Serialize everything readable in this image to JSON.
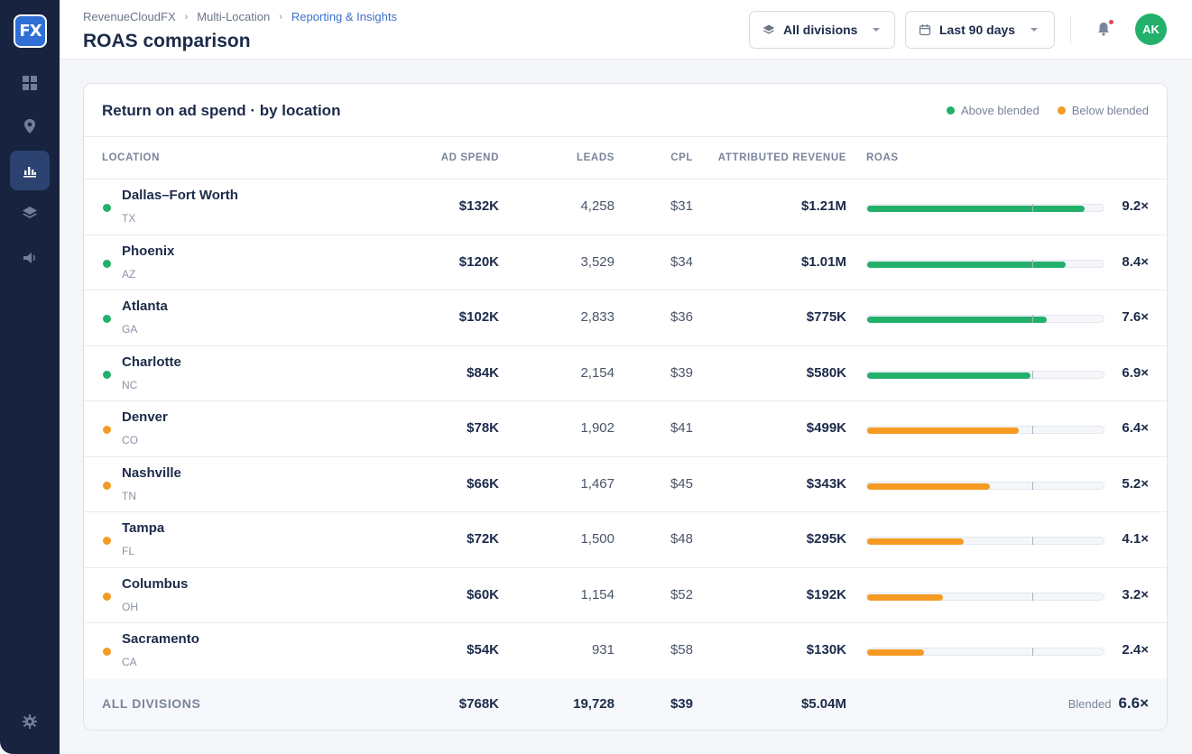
{
  "app": {
    "logo_text": "FX"
  },
  "sidebar": {
    "items": [
      {
        "name": "dashboard",
        "icon": "grid-icon"
      },
      {
        "name": "locations",
        "icon": "map-pin-icon"
      },
      {
        "name": "reporting",
        "icon": "bar-chart-icon",
        "active": true
      },
      {
        "name": "layers",
        "icon": "layers-icon"
      },
      {
        "name": "campaigns",
        "icon": "megaphone-icon"
      },
      {
        "name": "settings",
        "icon": "gear-icon"
      }
    ]
  },
  "header": {
    "breadcrumb": [
      "RevenueCloudFX",
      "Multi-Location",
      "Reporting & Insights"
    ],
    "title": "ROAS comparison",
    "division_filter": "All divisions",
    "date_filter": "Last 90 days",
    "avatar_initials": "AK"
  },
  "card": {
    "title": "Return on ad spend · by location",
    "legend": {
      "above": "Above blended",
      "below": "Below blended"
    },
    "columns": {
      "location": "LOCATION",
      "ad_spend": "AD SPEND",
      "leads": "LEADS",
      "cpl": "CPL",
      "revenue": "ATTRIBUTED REVENUE",
      "roas": "ROAS"
    },
    "rows": [
      {
        "name": "Dallas–Fort Worth",
        "state": "TX",
        "ad_spend": "$132K",
        "leads": "4,258",
        "cpl": "$31",
        "revenue": "$1.21M",
        "roas": 9.2,
        "roas_label": "9.2×",
        "status": "above"
      },
      {
        "name": "Phoenix",
        "state": "AZ",
        "ad_spend": "$120K",
        "leads": "3,529",
        "cpl": "$34",
        "revenue": "$1.01M",
        "roas": 8.4,
        "roas_label": "8.4×",
        "status": "above"
      },
      {
        "name": "Atlanta",
        "state": "GA",
        "ad_spend": "$102K",
        "leads": "2,833",
        "cpl": "$36",
        "revenue": "$775K",
        "roas": 7.6,
        "roas_label": "7.6×",
        "status": "above"
      },
      {
        "name": "Charlotte",
        "state": "NC",
        "ad_spend": "$84K",
        "leads": "2,154",
        "cpl": "$39",
        "revenue": "$580K",
        "roas": 6.9,
        "roas_label": "6.9×",
        "status": "above"
      },
      {
        "name": "Denver",
        "state": "CO",
        "ad_spend": "$78K",
        "leads": "1,902",
        "cpl": "$41",
        "revenue": "$499K",
        "roas": 6.4,
        "roas_label": "6.4×",
        "status": "below"
      },
      {
        "name": "Nashville",
        "state": "TN",
        "ad_spend": "$66K",
        "leads": "1,467",
        "cpl": "$45",
        "revenue": "$343K",
        "roas": 5.2,
        "roas_label": "5.2×",
        "status": "below"
      },
      {
        "name": "Tampa",
        "state": "FL",
        "ad_spend": "$72K",
        "leads": "1,500",
        "cpl": "$48",
        "revenue": "$295K",
        "roas": 4.1,
        "roas_label": "4.1×",
        "status": "below"
      },
      {
        "name": "Columbus",
        "state": "OH",
        "ad_spend": "$60K",
        "leads": "1,154",
        "cpl": "$52",
        "revenue": "$192K",
        "roas": 3.2,
        "roas_label": "3.2×",
        "status": "below"
      },
      {
        "name": "Sacramento",
        "state": "CA",
        "ad_spend": "$54K",
        "leads": "931",
        "cpl": "$58",
        "revenue": "$130K",
        "roas": 2.4,
        "roas_label": "2.4×",
        "status": "below"
      }
    ],
    "totals": {
      "label": "ALL DIVISIONS",
      "ad_spend": "$768K",
      "leads": "19,728",
      "cpl": "$39",
      "revenue": "$5.04M",
      "blended_label": "Blended",
      "blended_value": "6.6×"
    },
    "roas_scale_max": 10,
    "blended_roas": 6.6
  },
  "colors": {
    "above": "#22b06b",
    "below": "#f59a23",
    "accent": "#3b6fc9"
  }
}
